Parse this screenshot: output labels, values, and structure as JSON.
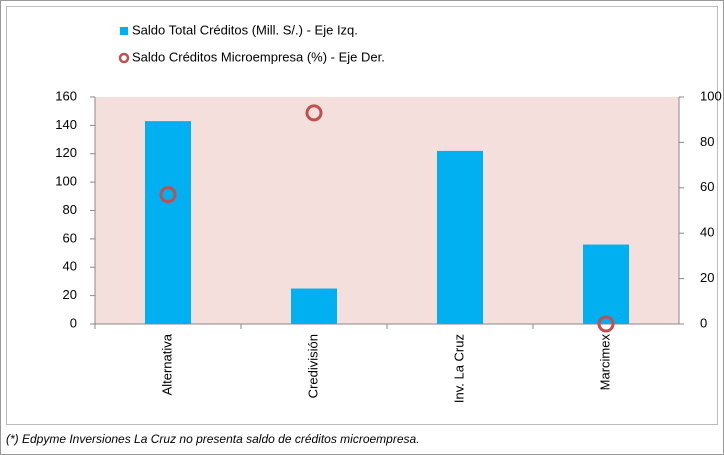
{
  "chart_data": {
    "type": "combo",
    "categories": [
      "Alternativa",
      "Credivisión",
      "Inv. La Cruz",
      "Marcimex"
    ],
    "series": [
      {
        "name": "Saldo Total  Créditos (Mill. S/.) - Eje Izq.",
        "type": "bar",
        "color": "#00b0f0",
        "values": [
          143,
          25,
          122,
          56
        ]
      },
      {
        "name": "Saldo Créditos Microempresa (%) - Eje Der.",
        "type": "scatter",
        "axis": "y2",
        "color": "#c0504d",
        "values": [
          57,
          93,
          null,
          0
        ]
      }
    ],
    "ylim": [
      0,
      160
    ],
    "yticks": [
      0,
      20,
      40,
      60,
      80,
      100,
      120,
      140,
      160
    ],
    "y2lim": [
      0,
      100
    ],
    "y2ticks": [
      0,
      20,
      40,
      60,
      80,
      100
    ],
    "plot_background": "#f5dfdd",
    "footnote": "(*) Edpyme Inversiones La Cruz no presenta saldo de créditos microempresa."
  }
}
